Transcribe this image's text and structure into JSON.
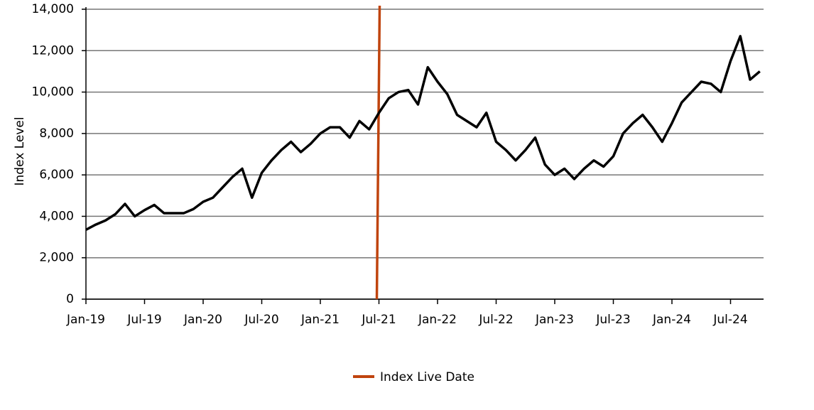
{
  "chart_data": {
    "type": "line",
    "y_label": "Index Level",
    "categories": [
      "Jan-19",
      null,
      null,
      null,
      null,
      null,
      "Jul-19",
      null,
      null,
      null,
      null,
      null,
      "Jan-20",
      null,
      null,
      null,
      null,
      null,
      "Jul-20",
      null,
      null,
      null,
      null,
      null,
      "Jan-21",
      null,
      null,
      null,
      null,
      null,
      "Jul-21",
      null,
      null,
      null,
      null,
      null,
      "Jan-22",
      null,
      null,
      null,
      null,
      null,
      "Jul-22",
      null,
      null,
      null,
      null,
      null,
      "Jan-23",
      null,
      null,
      null,
      null,
      null,
      "Jul-23",
      null,
      null,
      null,
      null,
      null,
      "Jan-24",
      null,
      null,
      null,
      null,
      null,
      "Jul-24",
      null,
      null,
      null
    ],
    "series": [
      {
        "color": "#000000",
        "values": [
          3350,
          3600,
          3800,
          4100,
          4600,
          4000,
          4300,
          4550,
          4150,
          4150,
          4150,
          4350,
          4700,
          4900,
          5400,
          5900,
          6300,
          4900,
          6100,
          6700,
          7200,
          7600,
          7100,
          7500,
          8000,
          8300,
          8300,
          7800,
          8600,
          8200,
          9000,
          9700,
          10000,
          10100,
          9400,
          11200,
          10500,
          9900,
          8900,
          8600,
          8300,
          9000,
          7600,
          7200,
          6700,
          7200,
          7800,
          6500,
          6000,
          6300,
          5800,
          6300,
          6700,
          6400,
          6900,
          8000,
          8500,
          8900,
          8300,
          7600,
          8500,
          9500,
          10000,
          10500,
          10400,
          10000,
          11500,
          12700,
          10600,
          11000
        ]
      }
    ],
    "vertical_line": {
      "name": "Index Live Date",
      "x": "Jul-21",
      "color": "#c0440e"
    },
    "ylim": [
      0,
      14000
    ],
    "yticks": [
      0,
      {
        "value": 2000,
        "label": "2,000"
      },
      {
        "value": 4000,
        "label": "4,000"
      },
      {
        "value": 6000,
        "label": "6,000"
      },
      {
        "value": 8000,
        "label": "8,000"
      },
      {
        "value": 10000,
        "label": "10,000"
      },
      {
        "value": 12000,
        "label": "12,000"
      },
      {
        "value": 14000,
        "label": "14,000"
      }
    ],
    "grid": true,
    "legend": "bottom"
  }
}
